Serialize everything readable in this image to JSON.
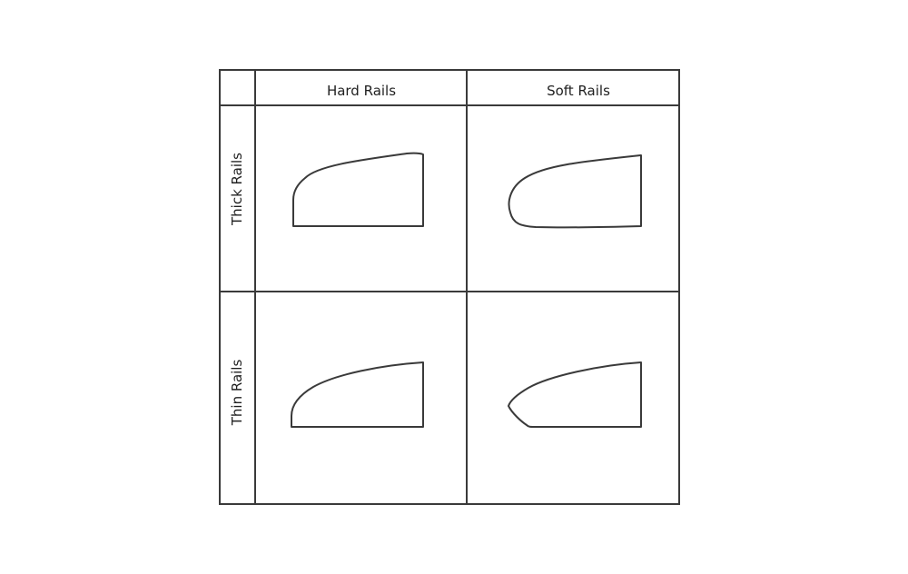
{
  "columns": [
    "Hard Rails",
    "Soft Rails"
  ],
  "rows": [
    "Thick Rails",
    "Thin Rails"
  ],
  "profiles": [
    {
      "row": "Thick Rails",
      "column": "Hard Rails",
      "icon": "hard-thick-rail-profile"
    },
    {
      "row": "Thick Rails",
      "column": "Soft Rails",
      "icon": "soft-thick-rail-profile"
    },
    {
      "row": "Thin Rails",
      "column": "Hard Rails",
      "icon": "hard-thin-rail-profile"
    },
    {
      "row": "Thin Rails",
      "column": "Soft Rails",
      "icon": "soft-thin-rail-profile"
    }
  ],
  "colors": {
    "line": "#3a3a3a",
    "text": "#1f1f1f",
    "background": "#ffffff"
  }
}
